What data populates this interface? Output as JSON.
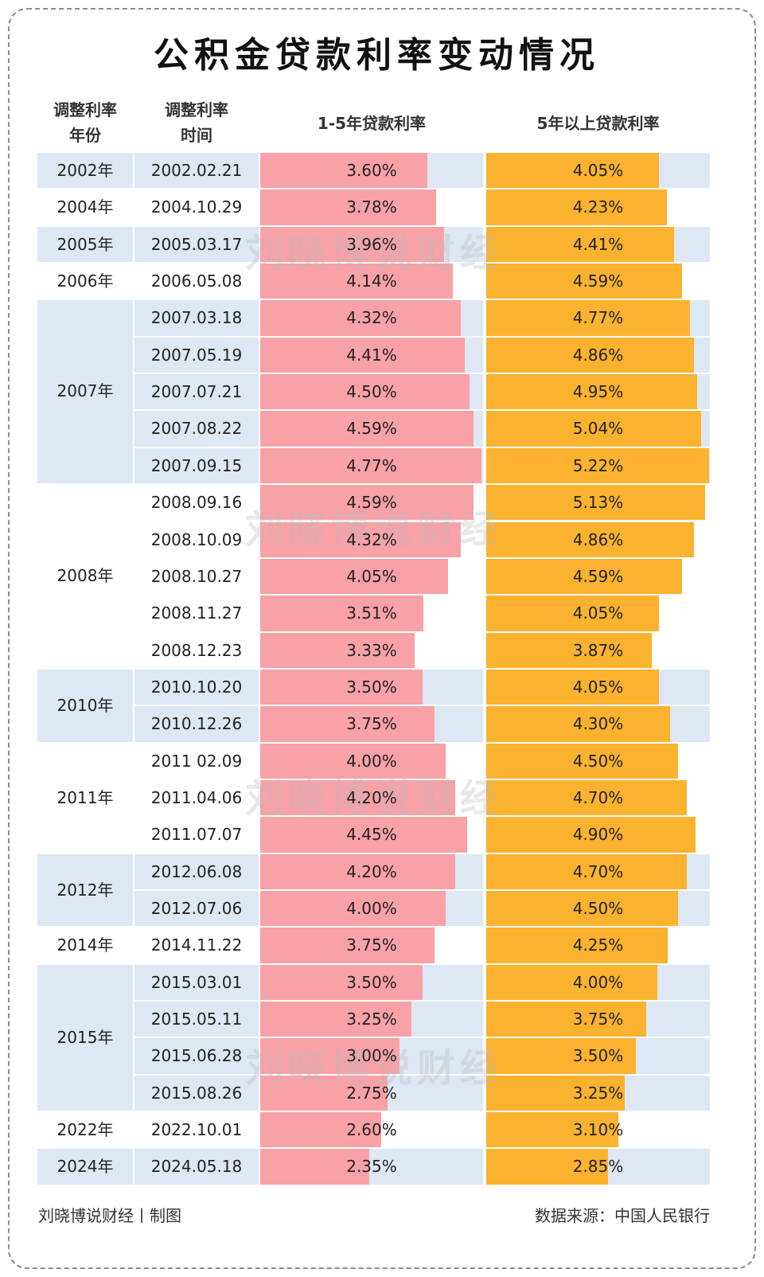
{
  "chart_data": {
    "type": "bar",
    "orientation": "horizontal",
    "title": "公积金贷款利率变动情况",
    "headers": {
      "year": [
        "调整利率",
        "年份"
      ],
      "date": [
        "调整利率",
        "时间"
      ]
    },
    "year_groups": [
      {
        "year": "2002年",
        "count": 1
      },
      {
        "year": "2004年",
        "count": 1
      },
      {
        "year": "2005年",
        "count": 1
      },
      {
        "year": "2006年",
        "count": 1
      },
      {
        "year": "2007年",
        "count": 5
      },
      {
        "year": "2008年",
        "count": 5
      },
      {
        "year": "2010年",
        "count": 2
      },
      {
        "year": "2011年",
        "count": 3
      },
      {
        "year": "2012年",
        "count": 2
      },
      {
        "year": "2014年",
        "count": 1
      },
      {
        "year": "2015年",
        "count": 4
      },
      {
        "year": "2022年",
        "count": 1
      },
      {
        "year": "2024年",
        "count": 1
      }
    ],
    "categories": [
      "2002.02.21",
      "2004.10.29",
      "2005.03.17",
      "2006.05.08",
      "2007.03.18",
      "2007.05.19",
      "2007.07.21",
      "2007.08.22",
      "2007.09.15",
      "2008.09.16",
      "2008.10.09",
      "2008.10.27",
      "2008.11.27",
      "2008.12.23",
      "2010.10.20",
      "2010.12.26",
      "2011 02.09",
      "2011.04.06",
      "2011.07.07",
      "2012.06.08",
      "2012.07.06",
      "2014.11.22",
      "2015.03.01",
      "2015.05.11",
      "2015.06.28",
      "2015.08.26",
      "2022.10.01",
      "2024.05.18"
    ],
    "series": [
      {
        "name": "1-5年贷款利率",
        "color": "#f8a1a7",
        "xlim": [
          0,
          4.8
        ],
        "values": [
          3.6,
          3.78,
          3.96,
          4.14,
          4.32,
          4.41,
          4.5,
          4.59,
          4.77,
          4.59,
          4.32,
          4.05,
          3.51,
          3.33,
          3.5,
          3.75,
          4.0,
          4.2,
          4.45,
          4.2,
          4.0,
          3.75,
          3.5,
          3.25,
          3.0,
          2.75,
          2.6,
          2.35
        ],
        "labels": [
          "3.60%",
          "3.78%",
          "3.96%",
          "4.14%",
          "4.32%",
          "4.41%",
          "4.50%",
          "4.59%",
          "4.77%",
          "4.59%",
          "4.32%",
          "4.05%",
          "3.51%",
          "3.33%",
          "3.50%",
          "3.75%",
          "4.00%",
          "4.20%",
          "4.45%",
          "4.20%",
          "4.00%",
          "3.75%",
          "3.50%",
          "3.25%",
          "3.00%",
          "2.75%",
          "2.60%",
          "2.35%"
        ]
      },
      {
        "name": "5年以上贷款利率",
        "color": "#fbb22e",
        "xlim": [
          0,
          5.24
        ],
        "values": [
          4.05,
          4.23,
          4.41,
          4.59,
          4.77,
          4.86,
          4.95,
          5.04,
          5.22,
          5.13,
          4.86,
          4.59,
          4.05,
          3.87,
          4.05,
          4.3,
          4.5,
          4.7,
          4.9,
          4.7,
          4.5,
          4.25,
          4.0,
          3.75,
          3.5,
          3.25,
          3.1,
          2.85
        ],
        "labels": [
          "4.05%",
          "4.23%",
          "4.41%",
          "4.59%",
          "4.77%",
          "4.86%",
          "4.95%",
          "5.04%",
          "5.22%",
          "5.13%",
          "4.86%",
          "4.59%",
          "4.05%",
          "3.87%",
          "4.05%",
          "4.30%",
          "4.50%",
          "4.70%",
          "4.90%",
          "4.70%",
          "4.50%",
          "4.25%",
          "4.00%",
          "3.75%",
          "3.50%",
          "3.25%",
          "3.10%",
          "2.85%"
        ]
      }
    ],
    "band_color": "#dde8f4"
  },
  "watermark": "刘晓博说财经",
  "footer": {
    "credit": "刘晓博说财经丨制图",
    "source": "数据来源：中国人民银行"
  }
}
